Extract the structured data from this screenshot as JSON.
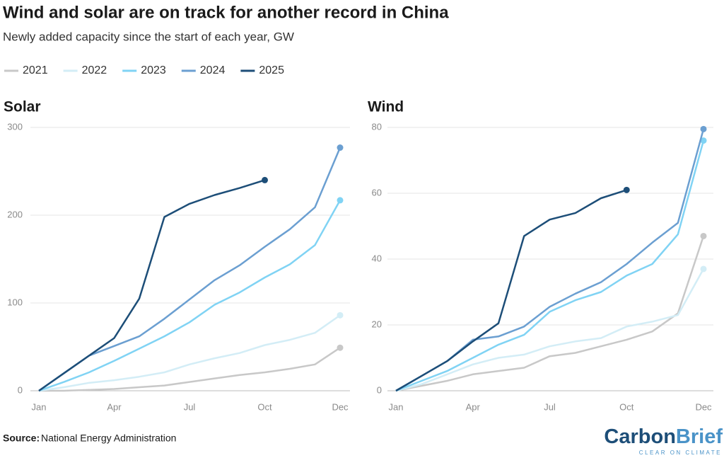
{
  "title": "Wind and solar are on track for another record in China",
  "subtitle": "Newly added capacity since the start of each year, GW",
  "source": {
    "label": "Source:",
    "text": "National Energy Administration"
  },
  "logo": {
    "name": [
      "Carbon",
      "Brief"
    ],
    "tagline": "CLEAR ON CLIMATE"
  },
  "chart_data": [
    {
      "type": "line",
      "title": "Solar",
      "categories": [
        "Jan",
        null,
        null,
        "Apr",
        null,
        null,
        "Jul",
        null,
        null,
        "Oct",
        null,
        null,
        "Dec"
      ],
      "series": [
        {
          "name": "2021",
          "color": "#c8c8c8",
          "values": [
            0,
            0,
            1,
            2,
            4,
            6,
            10,
            14,
            18,
            21,
            25,
            30,
            49
          ]
        },
        {
          "name": "2022",
          "color": "#d3edf6",
          "values": [
            0,
            4,
            9,
            12,
            16,
            21,
            30,
            37,
            43,
            52,
            58,
            66,
            86
          ]
        },
        {
          "name": "2023",
          "color": "#80d3f4",
          "values": [
            0,
            10,
            21,
            34,
            48,
            62,
            78,
            98,
            112,
            129,
            144,
            166,
            217
          ]
        },
        {
          "name": "2024",
          "color": "#6b9fd1",
          "values": [
            0,
            20,
            40,
            51,
            62,
            82,
            104,
            126,
            143,
            164,
            184,
            209,
            277
          ]
        },
        {
          "name": "2025",
          "color": "#1d4e78",
          "values": [
            0,
            20,
            40,
            60,
            105,
            198,
            213,
            223,
            231,
            240,
            null,
            null,
            null
          ]
        }
      ],
      "ylim": [
        0,
        300
      ],
      "yticks": [
        0,
        100,
        200,
        300
      ],
      "grid": true
    },
    {
      "type": "line",
      "title": "Wind",
      "categories": [
        "Jan",
        null,
        null,
        "Apr",
        null,
        null,
        "Jul",
        null,
        null,
        "Oct",
        null,
        null,
        "Dec"
      ],
      "series": [
        {
          "name": "2021",
          "color": "#c8c8c8",
          "values": [
            0,
            1.5,
            3,
            5,
            6,
            7,
            10.5,
            11.5,
            13.5,
            15.5,
            18,
            23.5,
            47
          ]
        },
        {
          "name": "2022",
          "color": "#d3edf6",
          "values": [
            0,
            2,
            5,
            8,
            10,
            11,
            13.5,
            15,
            16,
            19.5,
            21,
            23,
            37
          ]
        },
        {
          "name": "2023",
          "color": "#80d3f4",
          "values": [
            0,
            3,
            6,
            10,
            14,
            17,
            24,
            27.5,
            30,
            35,
            38.5,
            47.5,
            76
          ]
        },
        {
          "name": "2024",
          "color": "#6b9fd1",
          "values": [
            0,
            4.5,
            9,
            15.5,
            16.5,
            19.5,
            25.5,
            29.5,
            33,
            38.5,
            45,
            51,
            79.5
          ]
        },
        {
          "name": "2025",
          "color": "#1d4e78",
          "values": [
            0,
            4.5,
            9,
            15,
            20.5,
            47,
            52,
            54,
            58.5,
            61,
            null,
            null,
            null
          ]
        }
      ],
      "ylim": [
        0,
        80
      ],
      "yticks": [
        0,
        20,
        40,
        60,
        80
      ],
      "grid": true
    }
  ]
}
